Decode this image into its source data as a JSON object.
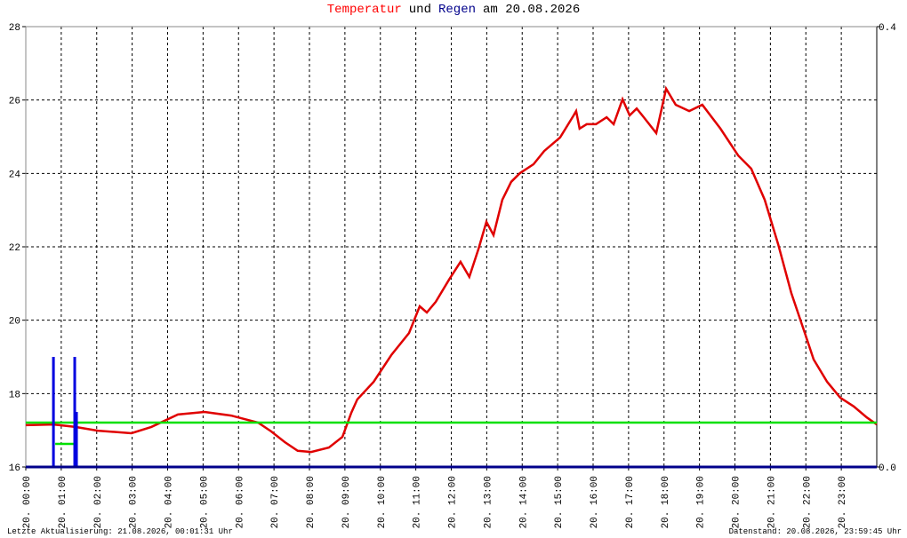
{
  "chart_data": {
    "type": "line",
    "title_parts": [
      {
        "text": "Temperatur",
        "color": "#ff0000"
      },
      {
        "text": "und",
        "color": "#000000"
      },
      {
        "text": "Regen",
        "color": "#00008b"
      },
      {
        "text": "am 20.08.2026",
        "color": "#000000"
      }
    ],
    "xlim": [
      0,
      24
    ],
    "xticks": [
      {
        "value": 0,
        "label": "20. 00:00"
      },
      {
        "value": 1,
        "label": "20. 01:00"
      },
      {
        "value": 2,
        "label": "20. 02:00"
      },
      {
        "value": 3,
        "label": "20. 03:00"
      },
      {
        "value": 4,
        "label": "20. 04:00"
      },
      {
        "value": 5,
        "label": "20. 05:00"
      },
      {
        "value": 6,
        "label": "20. 06:00"
      },
      {
        "value": 7,
        "label": "20. 07:00"
      },
      {
        "value": 8,
        "label": "20. 08:00"
      },
      {
        "value": 9,
        "label": "20. 09:00"
      },
      {
        "value": 10,
        "label": "20. 10:00"
      },
      {
        "value": 11,
        "label": "20. 11:00"
      },
      {
        "value": 12,
        "label": "20. 12:00"
      },
      {
        "value": 13,
        "label": "20. 13:00"
      },
      {
        "value": 14,
        "label": "20. 14:00"
      },
      {
        "value": 15,
        "label": "20. 15:00"
      },
      {
        "value": 16,
        "label": "20. 16:00"
      },
      {
        "value": 17,
        "label": "20. 17:00"
      },
      {
        "value": 18,
        "label": "20. 18:00"
      },
      {
        "value": 19,
        "label": "20. 19:00"
      },
      {
        "value": 20,
        "label": "20. 20:00"
      },
      {
        "value": 21,
        "label": "20. 21:00"
      },
      {
        "value": 22,
        "label": "20. 22:00"
      },
      {
        "value": 23,
        "label": "20. 23:00"
      }
    ],
    "ylim": [
      16,
      28
    ],
    "yticks": [
      16,
      18,
      20,
      22,
      24,
      26,
      28
    ],
    "y2lim": [
      0,
      0.4
    ],
    "y2ticks": [
      {
        "value": 0,
        "label": "0.0"
      },
      0.4
    ],
    "grid": true,
    "series": [
      {
        "style": "line",
        "color": "#e00000",
        "x": [
          0,
          0.78,
          1.4,
          2.03,
          2.98,
          3.54,
          4.29,
          5.04,
          5.79,
          6.55,
          6.92,
          7.3,
          7.67,
          8.05,
          8.55,
          8.93,
          9.18,
          9.35,
          9.81,
          10.31,
          10.81,
          11.11,
          11.31,
          11.56,
          11.94,
          12.26,
          12.51,
          12.77,
          12.99,
          13.19,
          13.44,
          13.69,
          13.94,
          14.32,
          14.62,
          15.07,
          15.45,
          15.52,
          15.62,
          15.82,
          16.08,
          16.38,
          16.58,
          16.83,
          17.03,
          17.23,
          17.43,
          17.78,
          18.06,
          18.33,
          18.71,
          19.08,
          19.59,
          20.09,
          20.46,
          20.84,
          21.22,
          21.59,
          21.97,
          22.22,
          22.6,
          22.97,
          23.35,
          23.72,
          24
        ],
        "values": [
          17.14,
          17.16,
          17.09,
          16.99,
          16.92,
          17.09,
          17.43,
          17.5,
          17.4,
          17.21,
          16.97,
          16.68,
          16.44,
          16.41,
          16.53,
          16.82,
          17.48,
          17.84,
          18.32,
          19.05,
          19.65,
          20.38,
          20.21,
          20.5,
          21.11,
          21.59,
          21.18,
          21.95,
          22.68,
          22.32,
          23.28,
          23.77,
          24.01,
          24.25,
          24.61,
          24.98,
          25.58,
          25.7,
          25.22,
          25.34,
          25.34,
          25.53,
          25.34,
          26.02,
          25.58,
          25.77,
          25.53,
          25.1,
          26.31,
          25.87,
          25.7,
          25.87,
          25.22,
          24.49,
          24.13,
          23.28,
          22.07,
          20.74,
          19.65,
          18.93,
          18.32,
          17.89,
          17.65,
          17.35,
          17.16
        ]
      },
      {
        "style": "line",
        "color": "#00e000",
        "x": [
          0,
          24
        ],
        "values": [
          17.21,
          17.21
        ]
      },
      {
        "style": "line",
        "color": "#00e000",
        "x": [
          0.83,
          1.38
        ],
        "values": [
          16.63,
          16.63
        ]
      },
      {
        "style": "bar",
        "color": "#0000e0",
        "axis": "y2",
        "x": [
          0.78,
          1.38,
          1.43
        ],
        "values": [
          0.1,
          0.1,
          0.05
        ]
      }
    ],
    "footer_left": "Letzte Aktualisierung: 21.08.2026, 00:01:31 Uhr",
    "footer_right": "Datenstand: 20.08.2026, 23:59:45 Uhr"
  }
}
